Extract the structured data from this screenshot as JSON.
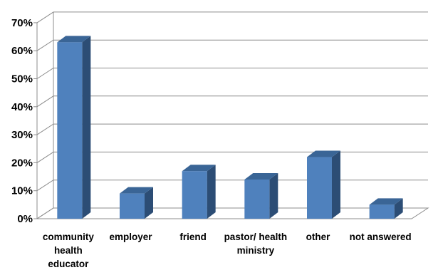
{
  "chart_data": {
    "type": "bar",
    "title": "",
    "xlabel": "",
    "ylabel": "",
    "categories": [
      [
        "community",
        "health",
        "educator"
      ],
      [
        "employer"
      ],
      [
        "friend"
      ],
      [
        "pastor/ health",
        "ministry"
      ],
      [
        "other"
      ],
      [
        "not answered"
      ]
    ],
    "values": [
      63,
      9,
      17,
      14,
      22,
      5
    ],
    "ylim": [
      0,
      70
    ],
    "yticks": [
      0,
      10,
      20,
      30,
      40,
      50,
      60,
      70
    ],
    "ytick_labels": [
      "0%",
      "10%",
      "20%",
      "30%",
      "40%",
      "50%",
      "60%",
      "70%"
    ],
    "grid": true,
    "legend": "none",
    "style": "3d-column",
    "colors": {
      "bar_front": "#4f81bd",
      "bar_side": "#2c4d75",
      "bar_top": "#3a6596",
      "grid": "#8c8c8c"
    }
  }
}
